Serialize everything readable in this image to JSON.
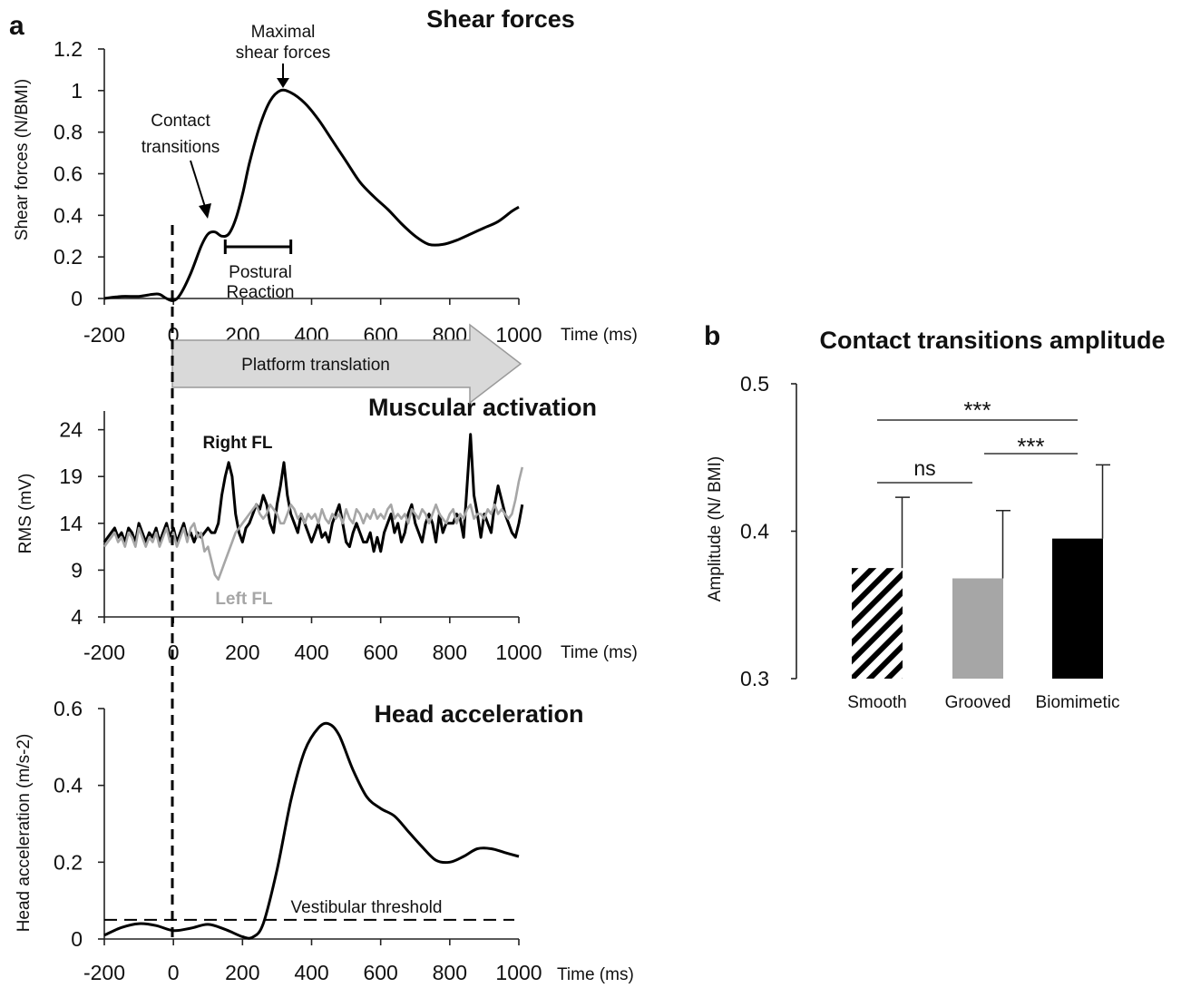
{
  "panel_a_label": "a",
  "panel_b_label": "b",
  "platform_label": "Platform translation",
  "colors": {
    "black": "#000000",
    "gray": "#a6a6a6",
    "arrow_fill": "#d9d9d9",
    "arrow_stroke": "#9a9a9a"
  },
  "chart_data": [
    {
      "type": "line",
      "title": "Shear forces",
      "xlabel": "Time (ms)",
      "ylabel": "Shear forces (N/BMI)",
      "xlim": [
        -200,
        1000
      ],
      "ylim": [
        0,
        1.2
      ],
      "xticks": [
        -200,
        0,
        200,
        400,
        600,
        800,
        1000
      ],
      "yticks": [
        0,
        0.2,
        0.4,
        0.6,
        0.8,
        1,
        1.2
      ],
      "series": [
        {
          "color": "#000000",
          "points": [
            [
              -200,
              0
            ],
            [
              -150,
              0.01
            ],
            [
              -100,
              0.01
            ],
            [
              -60,
              0.02
            ],
            [
              -40,
              0.02
            ],
            [
              -20,
              0
            ],
            [
              0,
              -0.01
            ],
            [
              20,
              0.02
            ],
            [
              50,
              0.12
            ],
            [
              80,
              0.25
            ],
            [
              100,
              0.31
            ],
            [
              120,
              0.32
            ],
            [
              140,
              0.3
            ],
            [
              160,
              0.31
            ],
            [
              180,
              0.38
            ],
            [
              200,
              0.5
            ],
            [
              220,
              0.65
            ],
            [
              250,
              0.83
            ],
            [
              280,
              0.95
            ],
            [
              310,
              1.0
            ],
            [
              340,
              0.99
            ],
            [
              380,
              0.94
            ],
            [
              420,
              0.86
            ],
            [
              460,
              0.76
            ],
            [
              500,
              0.66
            ],
            [
              540,
              0.56
            ],
            [
              580,
              0.49
            ],
            [
              620,
              0.43
            ],
            [
              660,
              0.36
            ],
            [
              700,
              0.3
            ],
            [
              740,
              0.26
            ],
            [
              780,
              0.26
            ],
            [
              820,
              0.28
            ],
            [
              860,
              0.31
            ],
            [
              900,
              0.34
            ],
            [
              940,
              0.37
            ],
            [
              980,
              0.42
            ],
            [
              1000,
              0.44
            ]
          ]
        }
      ],
      "annotations": [
        {
          "text": "Maximal shear forces",
          "lines": [
            "Maximal",
            "shear forces"
          ],
          "x": 315,
          "y": 1.0
        },
        {
          "text": "Contact transitions",
          "lines": [
            "Contact",
            "transitions"
          ],
          "x": 100,
          "y": 0.35
        },
        {
          "text": "Postural Reaction",
          "lines": [
            "Postural",
            "Reaction"
          ],
          "range": [
            150,
            340
          ],
          "y": 0.25
        }
      ]
    },
    {
      "type": "line",
      "title": "Muscular activation",
      "xlabel": "Time (ms)",
      "ylabel": "RMS (mV)",
      "xlim": [
        -200,
        1000
      ],
      "ylim": [
        4,
        26
      ],
      "xticks": [
        -200,
        0,
        200,
        400,
        600,
        800,
        1000
      ],
      "yticks": [
        4,
        9,
        14,
        19,
        24
      ],
      "series": [
        {
          "name": "Right FL",
          "color": "#000000",
          "x_start": -200,
          "x_step": 10,
          "values": [
            12,
            12.5,
            13,
            13.5,
            12.5,
            13,
            12,
            13.5,
            13,
            12,
            14,
            13,
            12,
            13,
            12.5,
            13.5,
            12,
            13,
            14,
            12.5,
            13.5,
            12,
            13,
            14,
            12.5,
            13,
            12,
            13,
            12.5,
            13,
            13.5,
            13,
            13,
            14,
            17,
            19,
            20.5,
            19,
            15,
            13,
            12,
            13.5,
            14,
            15,
            16,
            15.5,
            17,
            16,
            14,
            13,
            16,
            18,
            20.5,
            17,
            15,
            14,
            13,
            15,
            14,
            13,
            12,
            13,
            14,
            12.5,
            13,
            12,
            14,
            15,
            16,
            14,
            12,
            11.5,
            13,
            14,
            13,
            12,
            12,
            13,
            11,
            12.5,
            11,
            13,
            14,
            15,
            13,
            14,
            12,
            13,
            15,
            16,
            14,
            13,
            12,
            14,
            15,
            14,
            12,
            15,
            13,
            14,
            14,
            14,
            15,
            14.5,
            12.5,
            18,
            23.5,
            17,
            15,
            12.5,
            15,
            14,
            13,
            16,
            18,
            16.5,
            15,
            14,
            13,
            12.5,
            14,
            16
          ]
        },
        {
          "name": "Left FL",
          "color": "#a6a6a6",
          "x_start": -200,
          "x_step": 10,
          "values": [
            11.5,
            12,
            12.5,
            13,
            12,
            12.5,
            11.5,
            13,
            12.5,
            11.5,
            13.5,
            12.5,
            11.5,
            12.5,
            12,
            13,
            11.5,
            12.5,
            13.5,
            12,
            13,
            11.5,
            12.5,
            13.5,
            12,
            13.5,
            14,
            12.5,
            13,
            11,
            11.5,
            10,
            8.5,
            8,
            9,
            10,
            11,
            12,
            13,
            13.5,
            14,
            14.5,
            15,
            15.5,
            16,
            15,
            14.5,
            15,
            16,
            15.5,
            15,
            14,
            14,
            15,
            16,
            15.5,
            14.5,
            15,
            14,
            15,
            14.5,
            15,
            14,
            15.5,
            14.5,
            14,
            15,
            14.5,
            15,
            14,
            15.5,
            14.5,
            14,
            15.5,
            15,
            14,
            15,
            14.5,
            15.5,
            14.5,
            15,
            14.5,
            15.5,
            16,
            14.5,
            15,
            14.5,
            15,
            14,
            15.5,
            15,
            14.5,
            15.5,
            15,
            14,
            15,
            16,
            15,
            14.5,
            14,
            15,
            15.5,
            14,
            15,
            14.5,
            15.5,
            16,
            14.5,
            15,
            15,
            14.5,
            15.5,
            15,
            16,
            15,
            15.5,
            15,
            14.5,
            15,
            16.5,
            18.5,
            20
          ]
        }
      ]
    },
    {
      "type": "line",
      "title": "Head acceleration",
      "xlabel": "Time (ms)",
      "ylabel": "Head acceleration (m/s-2)",
      "xlim": [
        -200,
        1000
      ],
      "ylim": [
        0,
        0.6
      ],
      "xticks": [
        -200,
        0,
        200,
        400,
        600,
        800,
        1000
      ],
      "yticks": [
        0,
        0.2,
        0.4,
        0.6
      ],
      "threshold": {
        "label": "Vestibular threshold",
        "value": 0.05
      },
      "series": [
        {
          "color": "#000000",
          "points": [
            [
              -200,
              0.01
            ],
            [
              -150,
              0.03
            ],
            [
              -100,
              0.04
            ],
            [
              -50,
              0.035
            ],
            [
              0,
              0.022
            ],
            [
              50,
              0.028
            ],
            [
              100,
              0.038
            ],
            [
              150,
              0.025
            ],
            [
              200,
              0.006
            ],
            [
              230,
              0.005
            ],
            [
              260,
              0.04
            ],
            [
              300,
              0.18
            ],
            [
              340,
              0.36
            ],
            [
              380,
              0.49
            ],
            [
              420,
              0.55
            ],
            [
              450,
              0.56
            ],
            [
              480,
              0.53
            ],
            [
              520,
              0.44
            ],
            [
              560,
              0.37
            ],
            [
              600,
              0.34
            ],
            [
              640,
              0.32
            ],
            [
              680,
              0.28
            ],
            [
              720,
              0.24
            ],
            [
              760,
              0.205
            ],
            [
              800,
              0.2
            ],
            [
              840,
              0.215
            ],
            [
              880,
              0.235
            ],
            [
              920,
              0.235
            ],
            [
              960,
              0.225
            ],
            [
              1000,
              0.215
            ]
          ]
        }
      ]
    },
    {
      "type": "bar",
      "title": "Contact transitions amplitude",
      "xlabel": "",
      "ylabel": "Amplitude (N/ BMI)",
      "ylim": [
        0.3,
        0.5
      ],
      "yticks": [
        "0.3",
        "0.4",
        "0.5"
      ],
      "categories": [
        "Smooth",
        "Grooved",
        "Biomimetic"
      ],
      "values": [
        0.375,
        0.368,
        0.395
      ],
      "errors": [
        0.048,
        0.046,
        0.05
      ],
      "fills": [
        "hatched",
        "#a6a6a6",
        "#000000"
      ],
      "significance": [
        {
          "pair": [
            "Smooth",
            "Biomimetic"
          ],
          "label": "***"
        },
        {
          "pair": [
            "Smooth",
            "Grooved"
          ],
          "label": "ns"
        },
        {
          "pair": [
            "Grooved",
            "Biomimetic"
          ],
          "label": "***"
        }
      ]
    }
  ]
}
